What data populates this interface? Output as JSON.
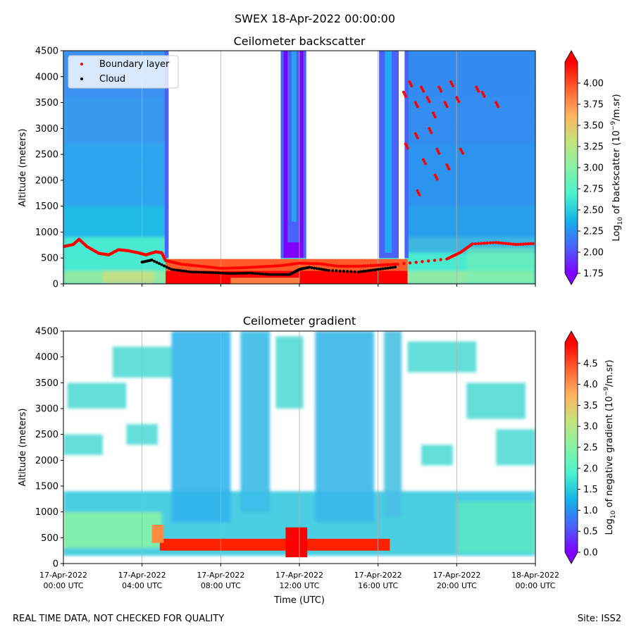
{
  "figure": {
    "suptitle": "SWEX 18-Apr-2022 00:00:00",
    "footer_left": "REAL TIME DATA, NOT CHECKED FOR QUALITY",
    "footer_right": "Site: ISS2"
  },
  "colormap_stops": [
    "#8000ff",
    "#4a62f9",
    "#14b2e8",
    "#4cf2ce",
    "#86f2a6",
    "#c5e47c",
    "#ffb360",
    "#ff6030",
    "#ff0000"
  ],
  "chart_data": [
    {
      "type": "heatmap",
      "title": "Ceilometer backscatter",
      "xlabel": "",
      "ylabel": "Altitude (meters)",
      "ylim": [
        0,
        4500
      ],
      "yticks": [
        0,
        500,
        1000,
        1500,
        2000,
        2500,
        3000,
        3500,
        4000,
        4500
      ],
      "x_time_range": [
        "17-Apr-2022 00:00 UTC",
        "18-Apr-2022 00:00 UTC"
      ],
      "grid": "vertical lines at x ticks",
      "legend": {
        "position": "top-left",
        "entries": [
          {
            "label": "Boundary layer",
            "color": "#ff0000"
          },
          {
            "label": "Cloud",
            "color": "#000000"
          }
        ]
      },
      "colorbar": {
        "label_prefix": "Log",
        "label_sub": "10",
        "label_mid": " of backscatter (10",
        "label_sup": "−9",
        "label_suffix": "/m.sr)",
        "range": [
          1.75,
          4.25
        ],
        "ticks": [
          "1.75",
          "2.00",
          "2.25",
          "2.50",
          "2.75",
          "3.00",
          "3.25",
          "3.50",
          "3.75",
          "4.00"
        ],
        "extend": "both"
      },
      "blank_time_ranges_hours": [
        [
          5.2,
          11.2
        ],
        [
          12.2,
          16.2
        ],
        [
          16.9,
          17.5
        ]
      ],
      "boundary_layer_m": [
        {
          "t": 0.0,
          "alt": 720
        },
        {
          "t": 0.5,
          "alt": 760
        },
        {
          "t": 0.8,
          "alt": 860
        },
        {
          "t": 1.2,
          "alt": 720
        },
        {
          "t": 1.8,
          "alt": 590
        },
        {
          "t": 2.3,
          "alt": 560
        },
        {
          "t": 2.8,
          "alt": 660
        },
        {
          "t": 3.3,
          "alt": 640
        },
        {
          "t": 3.8,
          "alt": 600
        },
        {
          "t": 4.2,
          "alt": 560
        },
        {
          "t": 4.7,
          "alt": 620
        },
        {
          "t": 5.0,
          "alt": 600
        },
        {
          "t": 5.2,
          "alt": 450
        },
        {
          "t": 6.0,
          "alt": 380
        },
        {
          "t": 7.0,
          "alt": 340
        },
        {
          "t": 8.0,
          "alt": 300
        },
        {
          "t": 9.0,
          "alt": 310
        },
        {
          "t": 10.0,
          "alt": 330
        },
        {
          "t": 11.0,
          "alt": 350
        },
        {
          "t": 12.0,
          "alt": 400
        },
        {
          "t": 13.0,
          "alt": 390
        },
        {
          "t": 14.0,
          "alt": 340
        },
        {
          "t": 15.0,
          "alt": 340
        },
        {
          "t": 16.0,
          "alt": 360
        },
        {
          "t": 17.0,
          "alt": 380
        },
        {
          "t": 19.5,
          "alt": 480
        },
        {
          "t": 20.2,
          "alt": 610
        },
        {
          "t": 20.8,
          "alt": 770
        },
        {
          "t": 22.0,
          "alt": 800
        },
        {
          "t": 23.0,
          "alt": 760
        },
        {
          "t": 24.0,
          "alt": 780
        }
      ],
      "cloud_m": [
        {
          "t": 4.0,
          "alt": 420
        },
        {
          "t": 4.5,
          "alt": 460
        },
        {
          "t": 5.5,
          "alt": 280
        },
        {
          "t": 6.5,
          "alt": 230
        },
        {
          "t": 7.5,
          "alt": 220
        },
        {
          "t": 8.5,
          "alt": 200
        },
        {
          "t": 9.5,
          "alt": 210
        },
        {
          "t": 10.5,
          "alt": 180
        },
        {
          "t": 11.5,
          "alt": 180
        },
        {
          "t": 12.0,
          "alt": 280
        },
        {
          "t": 12.5,
          "alt": 320
        },
        {
          "t": 13.5,
          "alt": 260
        },
        {
          "t": 15.0,
          "alt": 230
        },
        {
          "t": 16.0,
          "alt": 280
        },
        {
          "t": 17.0,
          "alt": 330
        }
      ],
      "upper_scatter_m": [
        {
          "t": 17.3,
          "alt": 3700
        },
        {
          "t": 17.6,
          "alt": 3900
        },
        {
          "t": 17.9,
          "alt": 3500
        },
        {
          "t": 18.2,
          "alt": 3800
        },
        {
          "t": 18.5,
          "alt": 3600
        },
        {
          "t": 18.8,
          "alt": 3300
        },
        {
          "t": 19.1,
          "alt": 3800
        },
        {
          "t": 19.4,
          "alt": 3500
        },
        {
          "t": 19.7,
          "alt": 3900
        },
        {
          "t": 20.0,
          "alt": 3600
        },
        {
          "t": 17.4,
          "alt": 2700
        },
        {
          "t": 17.9,
          "alt": 2900
        },
        {
          "t": 18.3,
          "alt": 2400
        },
        {
          "t": 18.6,
          "alt": 3000
        },
        {
          "t": 19.0,
          "alt": 2600
        },
        {
          "t": 19.5,
          "alt": 2300
        },
        {
          "t": 20.2,
          "alt": 2600
        },
        {
          "t": 18.0,
          "alt": 1800
        },
        {
          "t": 18.9,
          "alt": 2100
        },
        {
          "t": 21.0,
          "alt": 3800
        },
        {
          "t": 22.0,
          "alt": 3500
        },
        {
          "t": 21.3,
          "alt": 3700
        }
      ]
    },
    {
      "type": "heatmap",
      "title": "Ceilometer gradient",
      "xlabel": "Time (UTC)",
      "ylabel": "Altitude (meters)",
      "ylim": [
        0,
        4500
      ],
      "yticks": [
        0,
        500,
        1000,
        1500,
        2000,
        2500,
        3000,
        3500,
        4000,
        4500
      ],
      "xtick_labels": [
        [
          "17-Apr-2022",
          "00:00 UTC"
        ],
        [
          "17-Apr-2022",
          "04:00 UTC"
        ],
        [
          "17-Apr-2022",
          "08:00 UTC"
        ],
        [
          "17-Apr-2022",
          "12:00 UTC"
        ],
        [
          "17-Apr-2022",
          "16:00 UTC"
        ],
        [
          "17-Apr-2022",
          "20:00 UTC"
        ],
        [
          "18-Apr-2022",
          "00:00 UTC"
        ]
      ],
      "xtick_hours": [
        0,
        4,
        8,
        12,
        16,
        20,
        24
      ],
      "grid": "vertical lines at x ticks",
      "colorbar": {
        "label_prefix": "Log",
        "label_sub": "10",
        "label_mid": " of negative gradient (10",
        "label_sup": "−9",
        "label_suffix": "/m.sr)",
        "range": [
          0,
          5
        ],
        "ticks": [
          "0.0",
          "0.5",
          "1.0",
          "1.5",
          "2.0",
          "2.5",
          "3.0",
          "3.5",
          "4.0",
          "4.5"
        ],
        "extend": "both"
      }
    }
  ]
}
